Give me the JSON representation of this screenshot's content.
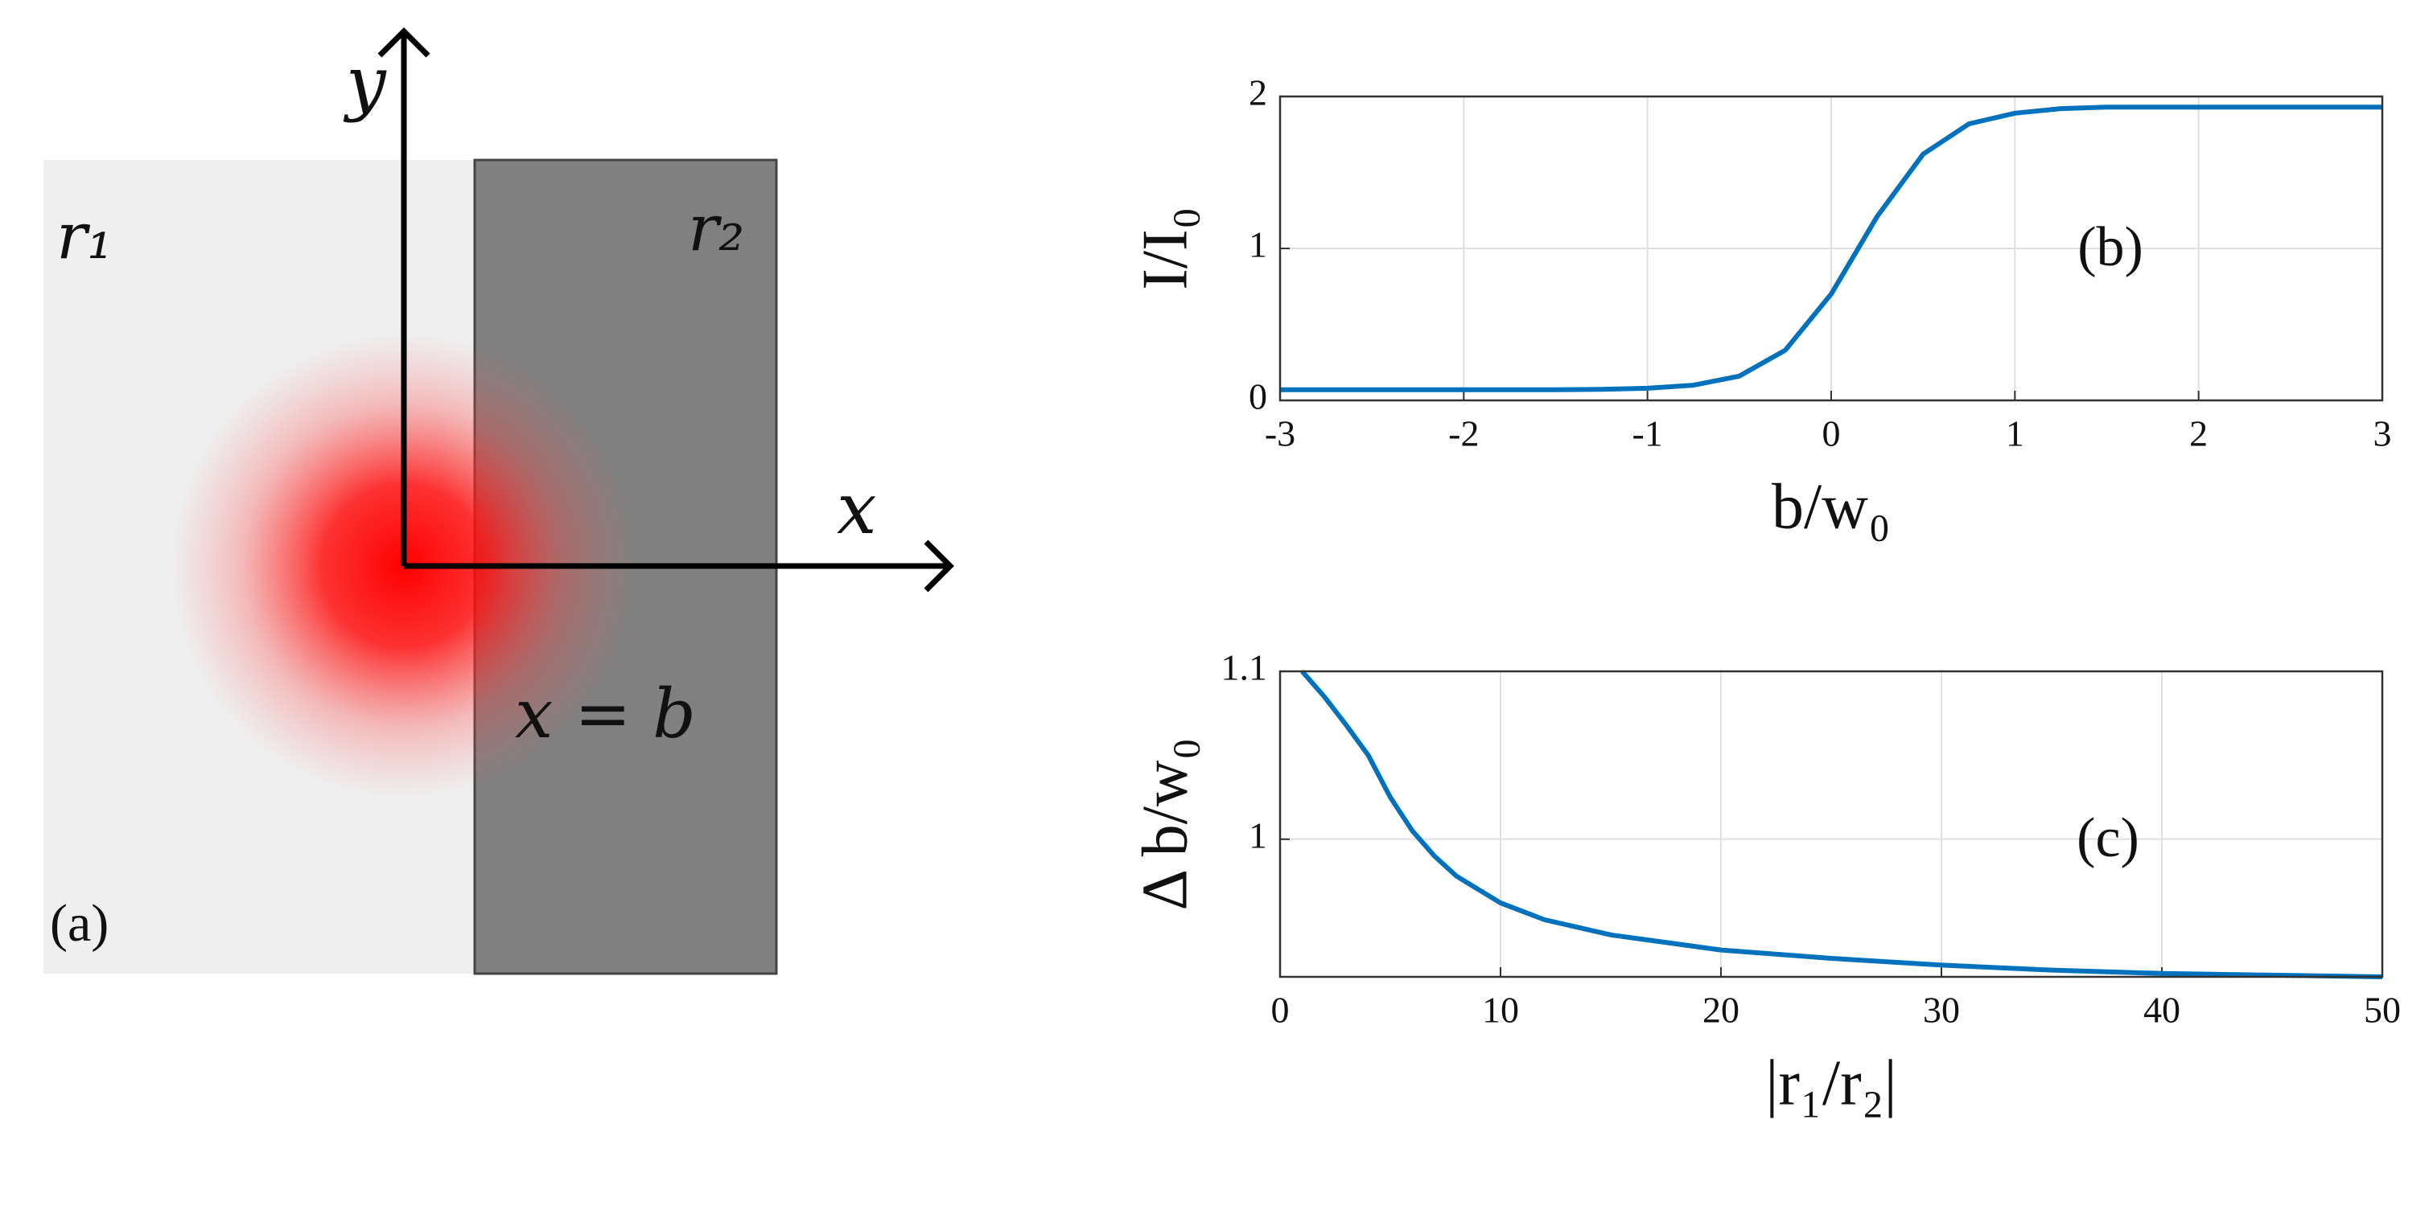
{
  "diagram": {
    "y_axis": "y",
    "x_axis": "x",
    "region_left": "r₁",
    "region_right": "r₂",
    "boundary": "x = b",
    "panel": "(a)"
  },
  "chart_data": [
    {
      "type": "line",
      "annotation": "(b)",
      "xlabel": "b/w₀",
      "ylabel": "I/I₀",
      "x": [
        -3,
        -2.75,
        -2.5,
        -2.25,
        -2,
        -1.75,
        -1.5,
        -1.25,
        -1,
        -0.75,
        -0.5,
        -0.25,
        0,
        0.25,
        0.5,
        0.75,
        1,
        1.25,
        1.5,
        1.75,
        2,
        2.25,
        2.5,
        2.75,
        3
      ],
      "y": [
        0.07,
        0.07,
        0.07,
        0.07,
        0.07,
        0.07,
        0.07,
        0.073,
        0.08,
        0.1,
        0.16,
        0.33,
        0.7,
        1.21,
        1.62,
        1.82,
        1.89,
        1.92,
        1.93,
        1.93,
        1.93,
        1.93,
        1.93,
        1.93,
        1.93
      ],
      "color": "#0072bd",
      "xlim": [
        -3,
        3
      ],
      "ylim": [
        0,
        2
      ],
      "xticks": [
        -3,
        -2,
        -1,
        0,
        1,
        2,
        3
      ],
      "yticks": [
        0,
        1,
        2
      ],
      "grid": true
    },
    {
      "type": "line",
      "annotation": "(c)",
      "xlabel": "|r₁/r₂|",
      "ylabel": "Δ b/w₀",
      "x": [
        1,
        2,
        3,
        4,
        5,
        6,
        7,
        8,
        10,
        12,
        15,
        20,
        25,
        30,
        35,
        40,
        45,
        50
      ],
      "y": [
        1.1,
        1.085,
        1.068,
        1.05,
        1.025,
        1.005,
        0.99,
        0.978,
        0.962,
        0.952,
        0.943,
        0.934,
        0.929,
        0.925,
        0.922,
        0.92,
        0.919,
        0.918
      ],
      "color": "#0072bd",
      "xlim": [
        0,
        50
      ],
      "ylim": [
        0.918,
        1.1
      ],
      "xticks": [
        0,
        10,
        20,
        30,
        40,
        50
      ],
      "yticks": [
        1,
        1.1
      ],
      "grid": true
    }
  ]
}
